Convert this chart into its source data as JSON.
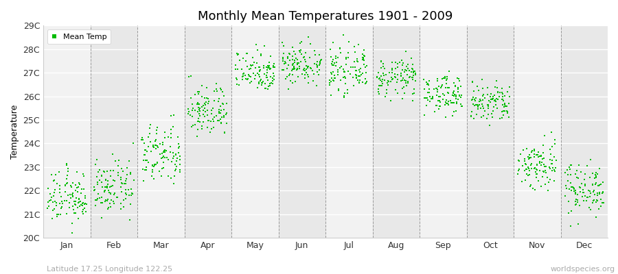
{
  "title": "Monthly Mean Temperatures 1901 - 2009",
  "ylabel": "Temperature",
  "xlabel_bottom_left": "Latitude 17.25 Longitude 122.25",
  "xlabel_bottom_right": "worldspecies.org",
  "ylim": [
    20.0,
    29.0
  ],
  "ytick_labels": [
    "20C",
    "21C",
    "22C",
    "23C",
    "24C",
    "25C",
    "26C",
    "27C",
    "28C",
    "29C"
  ],
  "ytick_values": [
    20,
    21,
    22,
    23,
    24,
    25,
    26,
    27,
    28,
    29
  ],
  "months": [
    "Jan",
    "Feb",
    "Mar",
    "Apr",
    "May",
    "Jun",
    "Jul",
    "Aug",
    "Sep",
    "Oct",
    "Nov",
    "Dec"
  ],
  "month_means": [
    21.7,
    22.1,
    23.5,
    25.4,
    27.1,
    27.4,
    27.1,
    26.8,
    26.1,
    25.7,
    23.1,
    22.1
  ],
  "month_stds": [
    0.55,
    0.55,
    0.65,
    0.55,
    0.45,
    0.45,
    0.45,
    0.4,
    0.4,
    0.45,
    0.55,
    0.55
  ],
  "month_mins": [
    20.2,
    20.5,
    21.8,
    24.0,
    26.0,
    26.1,
    25.9,
    25.8,
    25.0,
    24.5,
    22.0,
    20.5
  ],
  "month_maxs": [
    23.2,
    24.0,
    25.2,
    27.3,
    28.4,
    28.7,
    28.6,
    27.9,
    27.4,
    27.1,
    26.2,
    24.3
  ],
  "n_years": 109,
  "dot_color": "#00bb00",
  "dot_size": 3,
  "bg_color_even": "#f2f2f2",
  "bg_color_odd": "#e8e8e8",
  "grid_color": "#ffffff",
  "dashed_line_color": "#999999",
  "legend_label": "Mean Temp",
  "title_fontsize": 13,
  "axis_label_fontsize": 9,
  "tick_fontsize": 9,
  "bottom_left_color": "#aaaaaa",
  "bottom_right_color": "#aaaaaa"
}
